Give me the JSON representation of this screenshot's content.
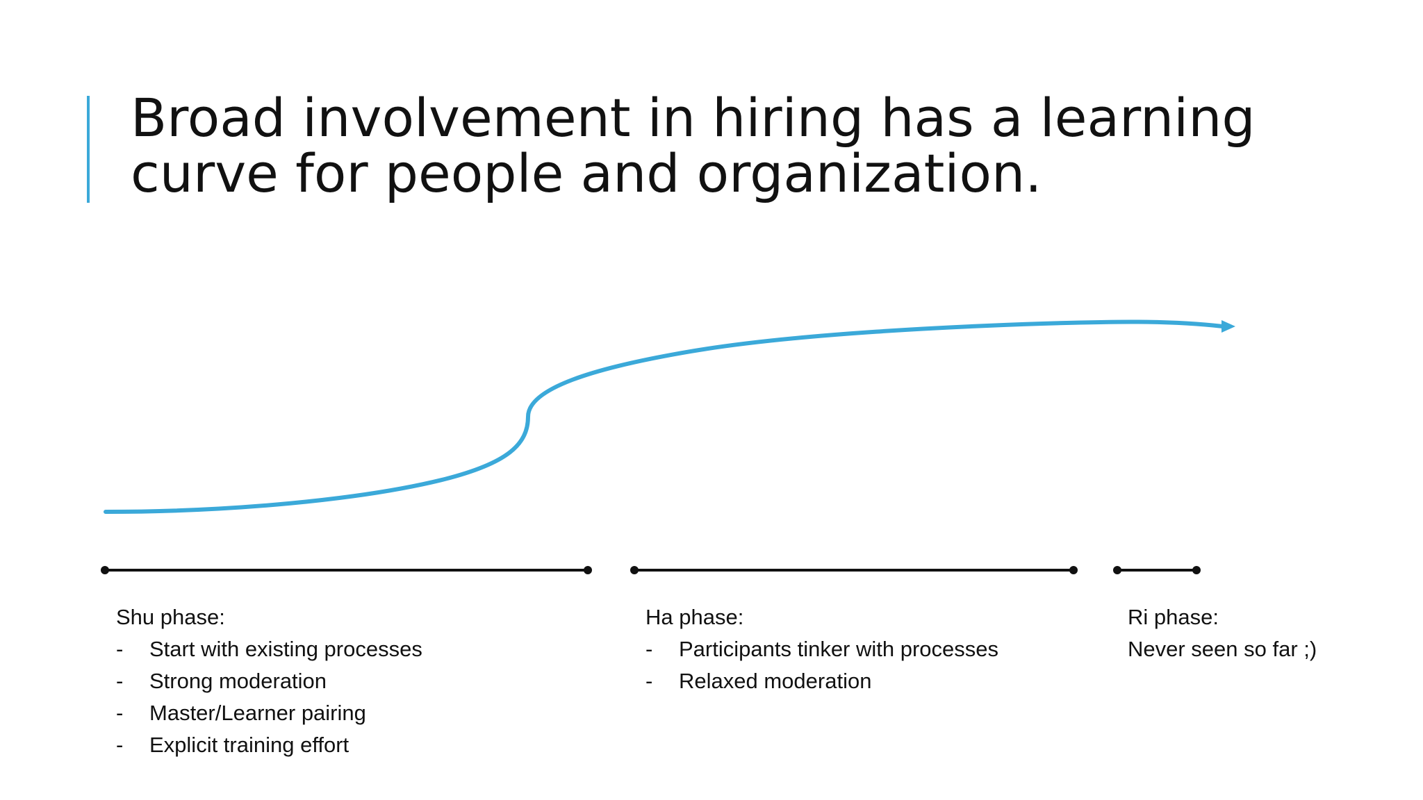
{
  "slide": {
    "title_lines": [
      "Broad involvement in hiring has a learning",
      "curve for people and organization."
    ],
    "accent_color": "#3ba9d9"
  },
  "diagram": {
    "curve_color": "#3ba9d9",
    "timeline_color": "#111111",
    "phases": [
      {
        "name": "Shu phase:",
        "bullet_marker": "-",
        "items": [
          "Start with existing processes",
          "Strong moderation",
          "Master/Learner pairing",
          "Explicit training effort"
        ]
      },
      {
        "name": "Ha phase:",
        "bullet_marker": "-",
        "items": [
          "Participants tinker with processes",
          "Relaxed moderation"
        ]
      },
      {
        "name": "Ri phase:",
        "note": "Never seen so far ;)"
      }
    ]
  }
}
